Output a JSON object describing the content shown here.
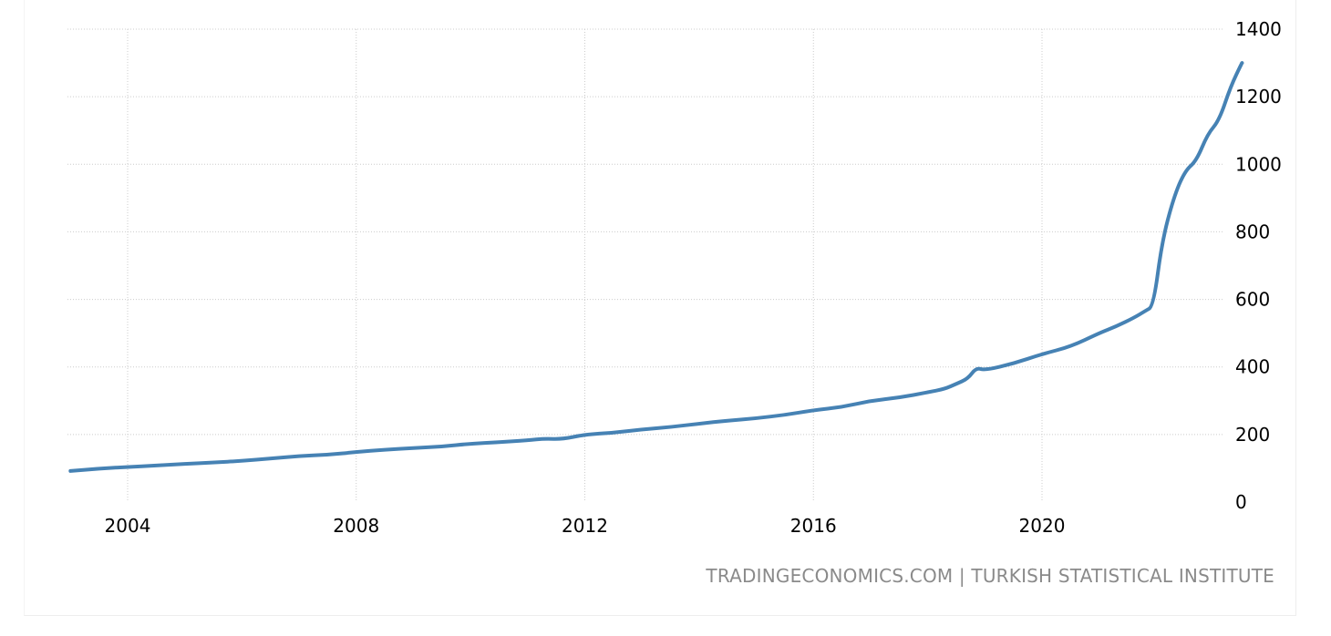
{
  "credits": "TRADINGECONOMICS.COM | TURKISH STATISTICAL INSTITUTE",
  "colors": {
    "line": "#4682b4",
    "grid": "#cccccc",
    "credit_text": "#8a8a8a"
  },
  "chart_data": {
    "type": "line",
    "title": "",
    "xlabel": "",
    "ylabel": "",
    "grid": true,
    "y_axis_side": "right",
    "x_ticks": [
      "2004",
      "2008",
      "2012",
      "2016",
      "2020"
    ],
    "y_ticks": [
      "0",
      "200",
      "400",
      "600",
      "800",
      "1000",
      "1200",
      "1400"
    ],
    "xlim": [
      2002.9,
      2023.6
    ],
    "ylim": [
      0,
      1400
    ],
    "series": [
      {
        "name": "",
        "x": [
          2003.0,
          2003.5,
          2004.0,
          2004.5,
          2005.0,
          2005.5,
          2006.0,
          2006.5,
          2007.0,
          2007.5,
          2008.0,
          2008.5,
          2009.0,
          2009.5,
          2010.0,
          2010.5,
          2011.0,
          2011.3,
          2011.6,
          2012.0,
          2012.5,
          2013.0,
          2013.5,
          2014.0,
          2014.5,
          2015.0,
          2015.5,
          2016.0,
          2016.5,
          2017.0,
          2017.5,
          2018.0,
          2018.3,
          2018.5,
          2018.7,
          2018.85,
          2019.0,
          2019.5,
          2020.0,
          2020.5,
          2021.0,
          2021.3,
          2021.6,
          2021.8,
          2021.95,
          2022.1,
          2022.3,
          2022.5,
          2022.7,
          2022.9,
          2023.1,
          2023.3,
          2023.5
        ],
        "y": [
          92,
          99,
          104,
          108,
          113,
          117,
          122,
          129,
          136,
          140,
          148,
          155,
          160,
          164,
          173,
          177,
          183,
          188,
          186,
          200,
          205,
          215,
          222,
          232,
          241,
          248,
          258,
          272,
          281,
          300,
          309,
          325,
          335,
          350,
          365,
          398,
          390,
          410,
          438,
          460,
          500,
          520,
          545,
          565,
          580,
          770,
          900,
          980,
          1010,
          1090,
          1130,
          1230,
          1300
        ]
      }
    ]
  }
}
